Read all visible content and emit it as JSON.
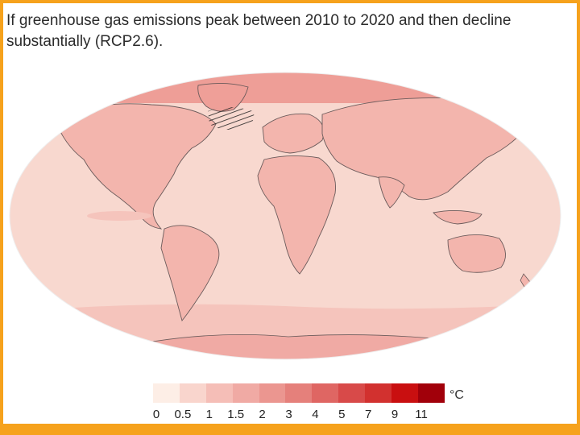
{
  "caption": {
    "line1": "If greenhouse gas emissions peak between 2010 to 2020 and then decline",
    "line2": "substantially (RCP2.6)."
  },
  "map": {
    "projection": "Robinson-style oval world map",
    "ocean_color": "#f8d8cf",
    "land_color": "#f3b5ad",
    "high_latitude_color": "#ee9e97",
    "hatched_region": "North Atlantic south of Greenland"
  },
  "legend": {
    "unit": "°C",
    "tick_labels": [
      "0",
      "0.5",
      "1",
      "1.5",
      "2",
      "3",
      "4",
      "5",
      "7",
      "9",
      "11"
    ],
    "colors": [
      "#fdeee6",
      "#f9d5cd",
      "#f5beb7",
      "#f0aaa4",
      "#eb9690",
      "#e5807b",
      "#df6663",
      "#d84a49",
      "#d2312f",
      "#c90f10",
      "#a1000a"
    ]
  }
}
